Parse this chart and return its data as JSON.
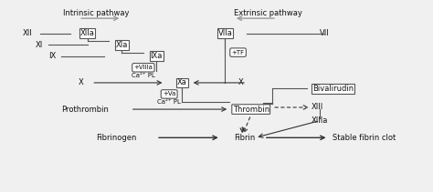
{
  "bg_color": "#f0f0f0",
  "inner_bg": "#ffffff",
  "line_color": "#555555",
  "text_color": "#111111",
  "arrow_color": "#333333",
  "gray_arrow": "#999999",
  "figsize": [
    4.74,
    2.11
  ],
  "dpi": 100,
  "labels": {
    "intrinsic_pathway": "Intrinsic pathway",
    "extrinsic_pathway": "Extrinsic pathway",
    "XII": "XII",
    "XI": "XI",
    "IX": "IX",
    "X_left": "X",
    "X_right": "X",
    "XIIa": "XIIa",
    "XIa": "XIa",
    "IXa": "IXa",
    "VIIIa": "+VIIIa",
    "Ca2PL_upper": "Ca²⁺ PL",
    "Xa": "Xa",
    "Va": "+Va",
    "Ca2PL_lower": "Ca²⁺ PL",
    "VIIa": "VIIa",
    "VII": "VII",
    "TF": "+TF",
    "Bivalirudin": "Bivalirudin",
    "Prothrombin": "Prothrombin",
    "Thrombin": "Thrombin",
    "XIII": "XIII",
    "XIIIa": "XIIIa",
    "Fibrinogen": "Fibrinogen",
    "Fibrin": "Fibrin",
    "Stable_fibrin_clot": "Stable fibrin clot"
  }
}
